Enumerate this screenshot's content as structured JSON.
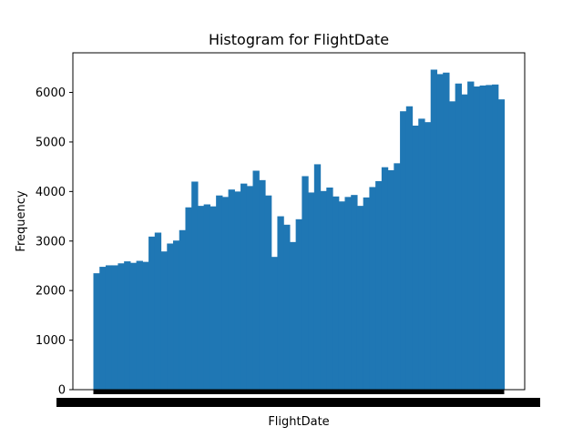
{
  "chart_data": {
    "type": "bar",
    "title": "Histogram for FlightDate",
    "xlabel": "FlightDate",
    "ylabel": "Frequency",
    "ylim": [
      0,
      6800
    ],
    "yticks": [
      0,
      1000,
      2000,
      3000,
      4000,
      5000,
      6000
    ],
    "ytick_labels": [
      "0",
      "1000",
      "2000",
      "3000",
      "4000",
      "5000",
      "6000"
    ],
    "x_tick_labels_note": "overlapping, illegible date tick labels",
    "grid": false,
    "bar_color": "#1f77b4",
    "values": [
      2350,
      2480,
      2510,
      2510,
      2550,
      2590,
      2560,
      2600,
      2580,
      3090,
      3170,
      2790,
      2950,
      3010,
      3220,
      3680,
      4200,
      3710,
      3740,
      3700,
      3920,
      3890,
      4040,
      4000,
      4160,
      4110,
      4420,
      4230,
      3920,
      2680,
      3500,
      3330,
      2980,
      3440,
      4310,
      3980,
      4550,
      4010,
      4080,
      3900,
      3800,
      3890,
      3930,
      3710,
      3880,
      4090,
      4210,
      4490,
      4430,
      4570,
      5620,
      5720,
      5330,
      5470,
      5400,
      6460,
      6370,
      6400,
      5820,
      6180,
      5960,
      6220,
      6120,
      6140,
      6150,
      6160,
      5860
    ]
  }
}
